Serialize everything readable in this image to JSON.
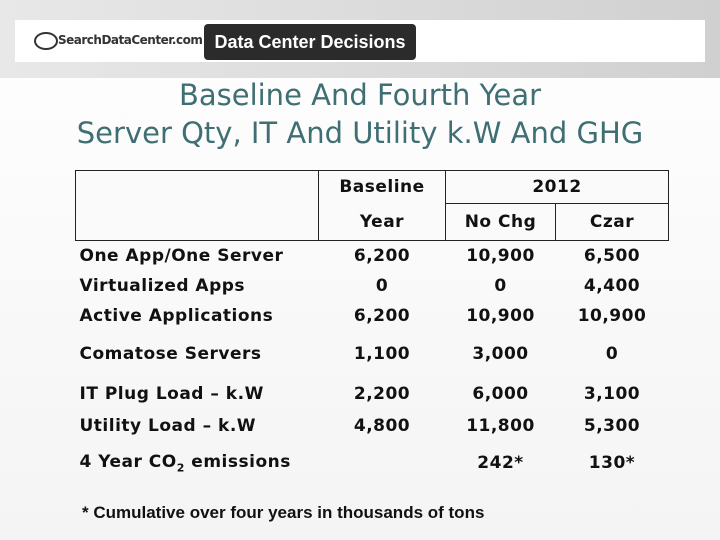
{
  "header": {
    "logo": "SearchDataCenter.com",
    "banner": "Data Center Decisions"
  },
  "title": [
    "Baseline And Fourth Year",
    "Server Qty, IT And Utility k.W And GHG"
  ],
  "table": {
    "header": {
      "baseline": "Baseline",
      "baseline_sub": "Year",
      "year": "2012",
      "no_chg": "No Chg",
      "czar": "Czar"
    },
    "rows": [
      [
        "One App/One Server",
        "6,200",
        "10,900",
        "6,500"
      ],
      [
        "Virtualized Apps",
        "0",
        "0",
        "4,400"
      ],
      [
        "Active Applications",
        "6,200",
        "10,900",
        "10,900"
      ],
      [
        "Comatose Servers",
        "1,100",
        "3,000",
        "0"
      ],
      [
        "IT Plug Load – k.W",
        "2,200",
        "6,000",
        "3,100"
      ],
      [
        "Utility Load – k.W",
        "4,800",
        "11,800",
        "5,300"
      ]
    ],
    "emissions": {
      "label": "4 Year CO",
      "sub": "2",
      "suffix": " emissions",
      "values": [
        "242*",
        "130*"
      ]
    }
  },
  "footnote": "* Cumulative over four years in thousands of tons"
}
